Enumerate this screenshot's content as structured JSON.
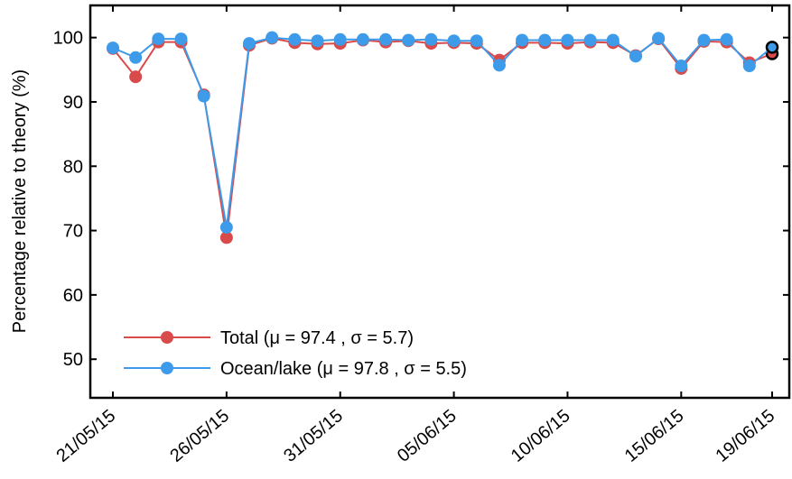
{
  "chart_data": {
    "type": "line",
    "ylabel": "Percentage relative to theory (%)",
    "xlabel": "",
    "ylim": [
      44,
      105
    ],
    "yticks": [
      50,
      60,
      70,
      80,
      90,
      100
    ],
    "x_date_range": [
      "21/05/15",
      "19/06/15"
    ],
    "xtick_labels": [
      "21/05/15",
      "26/05/15",
      "31/05/15",
      "05/06/15",
      "10/06/15",
      "15/06/15",
      "19/06/15"
    ],
    "x": [
      "21/05/15",
      "22/05/15",
      "23/05/15",
      "24/05/15",
      "25/05/15",
      "26/05/15",
      "27/05/15",
      "28/05/15",
      "29/05/15",
      "30/05/15",
      "31/05/15",
      "01/06/15",
      "02/06/15",
      "03/06/15",
      "04/06/15",
      "05/06/15",
      "06/06/15",
      "07/06/15",
      "08/06/15",
      "09/06/15",
      "10/06/15",
      "11/06/15",
      "12/06/15",
      "13/06/15",
      "14/06/15",
      "15/06/15",
      "16/06/15",
      "17/06/15",
      "18/06/15",
      "19/06/15"
    ],
    "series": [
      {
        "name": "Total (μ = 97.4 , σ = 5.7)",
        "color": "#d94a4a",
        "values": [
          98.3,
          93.9,
          99.3,
          99.3,
          91.1,
          68.9,
          98.8,
          99.9,
          99.2,
          99.0,
          99.1,
          99.6,
          99.3,
          99.5,
          99.1,
          99.2,
          99.1,
          96.5,
          99.2,
          99.2,
          99.1,
          99.3,
          99.2,
          97.2,
          99.8,
          95.2,
          99.4,
          99.3,
          96.1,
          97.5
        ]
      },
      {
        "name": "Ocean/lake (μ = 97.8 , σ = 5.5)",
        "color": "#3d9be9",
        "values": [
          98.4,
          96.9,
          99.8,
          99.8,
          90.9,
          70.5,
          99.1,
          100.0,
          99.7,
          99.5,
          99.7,
          99.7,
          99.7,
          99.6,
          99.7,
          99.5,
          99.5,
          95.7,
          99.6,
          99.6,
          99.6,
          99.6,
          99.6,
          97.1,
          99.9,
          95.6,
          99.6,
          99.7,
          95.6,
          98.5
        ]
      }
    ],
    "legend_position": "bottom-left",
    "grid": false
  }
}
